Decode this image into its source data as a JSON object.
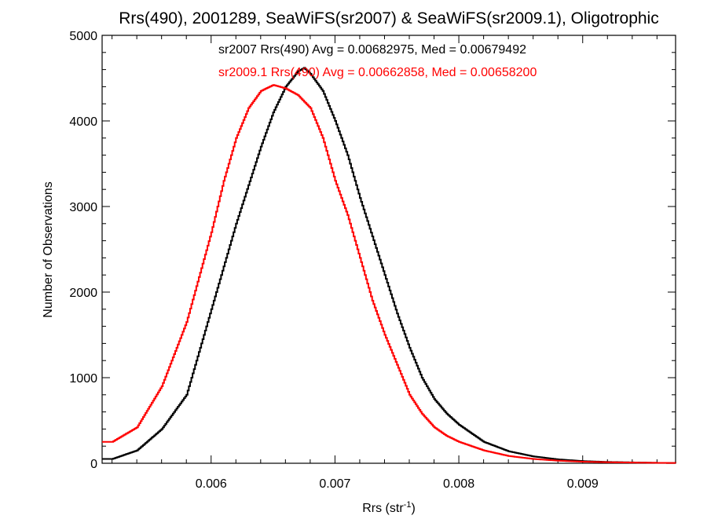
{
  "chart_data": {
    "type": "line",
    "step": true,
    "title": "Rrs(490), 2001289, SeaWiFS(sr2007) & SeaWiFS(sr2009.1), Oligotrophic",
    "xlabel": "Rrs (str",
    "xlabel_superscript": "-1",
    "xlabel_close": ")",
    "ylabel": "Number of Observations",
    "xlim": [
      0.00512,
      0.00975
    ],
    "ylim": [
      0,
      5000
    ],
    "x_ticks": [
      0.006,
      0.007,
      0.008,
      0.009
    ],
    "x_tick_labels": [
      "0.006",
      "0.007",
      "0.008",
      "0.009"
    ],
    "y_ticks": [
      0,
      1000,
      2000,
      3000,
      4000,
      5000
    ],
    "y_tick_labels": [
      "0",
      "1000",
      "2000",
      "3000",
      "4000",
      "5000"
    ],
    "grid": false,
    "annotations": [
      {
        "text": "sr2007 Rrs(490) Avg = 0.00682975, Med = 0.00679492",
        "color": "#000000"
      },
      {
        "text": "sr2009.1 Rrs(490) Avg = 0.00662858, Med = 0.00658200",
        "color": "#ff0000"
      }
    ],
    "series": [
      {
        "color": "#000000",
        "x": [
          0.0052,
          0.0054,
          0.0056,
          0.0058,
          0.006,
          0.0062,
          0.0064,
          0.0065,
          0.0066,
          0.0067,
          0.00675,
          0.0068,
          0.0069,
          0.007,
          0.0071,
          0.0072,
          0.0073,
          0.0074,
          0.0075,
          0.0076,
          0.0077,
          0.0078,
          0.0079,
          0.008,
          0.0082,
          0.0084,
          0.0086,
          0.0088,
          0.009,
          0.0092,
          0.0094,
          0.0096,
          0.00975
        ],
        "y": [
          50,
          150,
          400,
          800,
          1800,
          2800,
          3700,
          4100,
          4400,
          4580,
          4620,
          4550,
          4350,
          4000,
          3600,
          3100,
          2650,
          2200,
          1750,
          1350,
          1000,
          750,
          580,
          450,
          250,
          140,
          80,
          45,
          25,
          15,
          10,
          5,
          3
        ]
      },
      {
        "color": "#ff0000",
        "x": [
          0.0052,
          0.0054,
          0.0056,
          0.0058,
          0.006,
          0.0061,
          0.0062,
          0.0063,
          0.0064,
          0.0065,
          0.0066,
          0.0067,
          0.0068,
          0.0069,
          0.007,
          0.0071,
          0.0072,
          0.0073,
          0.0074,
          0.0075,
          0.0076,
          0.0077,
          0.0078,
          0.0079,
          0.008,
          0.0082,
          0.0084,
          0.0086,
          0.0088,
          0.009,
          0.0092,
          0.0094,
          0.0096,
          0.00975
        ],
        "y": [
          250,
          420,
          900,
          1650,
          2700,
          3300,
          3800,
          4150,
          4350,
          4420,
          4380,
          4300,
          4150,
          3800,
          3300,
          2900,
          2400,
          1900,
          1500,
          1150,
          800,
          580,
          420,
          320,
          250,
          150,
          85,
          50,
          30,
          18,
          12,
          8,
          5,
          3
        ]
      }
    ]
  }
}
